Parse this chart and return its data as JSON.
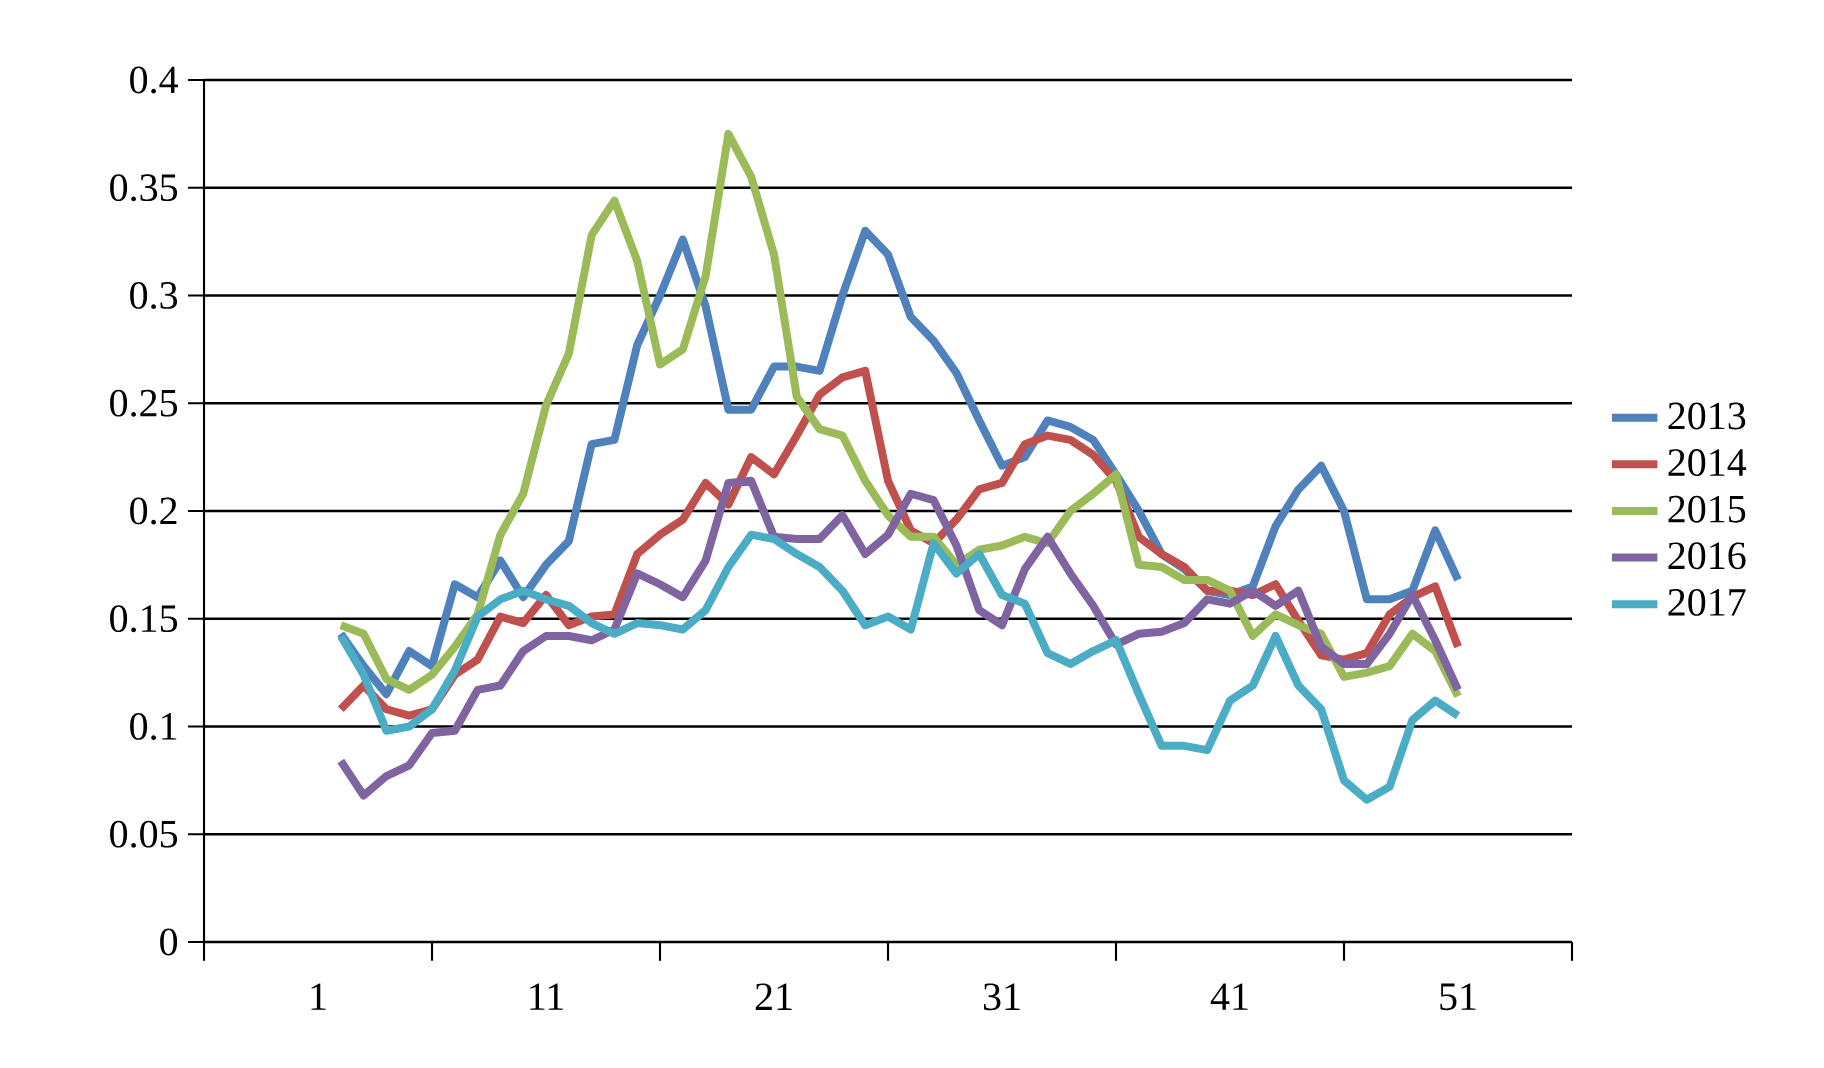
{
  "chart_data": {
    "type": "line",
    "x": [
      2,
      3,
      4,
      5,
      6,
      7,
      8,
      9,
      10,
      11,
      12,
      13,
      14,
      15,
      16,
      17,
      18,
      19,
      20,
      21,
      22,
      23,
      24,
      25,
      26,
      27,
      28,
      29,
      30,
      31,
      32,
      33,
      34,
      35,
      36,
      37,
      38,
      39,
      40,
      41,
      42,
      43,
      44,
      45,
      46,
      47,
      48,
      49,
      50,
      51
    ],
    "series": [
      {
        "name": "2013",
        "color": "#4f81bd",
        "values": [
          0.143,
          0.128,
          0.115,
          0.135,
          0.128,
          0.166,
          0.16,
          0.177,
          0.16,
          0.175,
          0.186,
          0.231,
          0.233,
          0.277,
          0.3,
          0.326,
          0.295,
          0.247,
          0.247,
          0.267,
          0.267,
          0.265,
          0.3,
          0.33,
          0.319,
          0.29,
          0.279,
          0.264,
          0.242,
          0.221,
          0.225,
          0.242,
          0.239,
          0.233,
          0.217,
          0.2,
          0.18,
          0.173,
          0.163,
          0.161,
          0.165,
          0.193,
          0.21,
          0.221,
          0.2,
          0.159,
          0.159,
          0.163,
          0.191,
          0.168
        ]
      },
      {
        "name": "2014",
        "color": "#c0504d",
        "values": [
          0.108,
          0.119,
          0.108,
          0.105,
          0.108,
          0.124,
          0.131,
          0.151,
          0.148,
          0.161,
          0.147,
          0.151,
          0.152,
          0.18,
          0.189,
          0.196,
          0.213,
          0.203,
          0.225,
          0.217,
          0.235,
          0.254,
          0.262,
          0.265,
          0.214,
          0.191,
          0.185,
          0.196,
          0.21,
          0.213,
          0.231,
          0.235,
          0.233,
          0.226,
          0.214,
          0.188,
          0.18,
          0.174,
          0.163,
          0.163,
          0.161,
          0.166,
          0.149,
          0.133,
          0.131,
          0.134,
          0.152,
          0.16,
          0.165,
          0.137
        ]
      },
      {
        "name": "2015",
        "color": "#9bbb59",
        "values": [
          0.147,
          0.143,
          0.122,
          0.117,
          0.124,
          0.137,
          0.152,
          0.189,
          0.208,
          0.249,
          0.273,
          0.328,
          0.344,
          0.316,
          0.268,
          0.275,
          0.309,
          0.375,
          0.355,
          0.319,
          0.253,
          0.238,
          0.235,
          0.214,
          0.198,
          0.188,
          0.188,
          0.175,
          0.182,
          0.184,
          0.188,
          0.185,
          0.2,
          0.208,
          0.217,
          0.175,
          0.174,
          0.168,
          0.168,
          0.163,
          0.142,
          0.152,
          0.147,
          0.143,
          0.123,
          0.125,
          0.128,
          0.143,
          0.135,
          0.114
        ]
      },
      {
        "name": "2016",
        "color": "#8064a2",
        "values": [
          0.084,
          0.068,
          0.077,
          0.082,
          0.097,
          0.098,
          0.117,
          0.119,
          0.135,
          0.142,
          0.142,
          0.14,
          0.145,
          0.171,
          0.166,
          0.16,
          0.177,
          0.213,
          0.214,
          0.188,
          0.187,
          0.187,
          0.198,
          0.18,
          0.189,
          0.208,
          0.205,
          0.184,
          0.154,
          0.147,
          0.173,
          0.188,
          0.171,
          0.156,
          0.138,
          0.143,
          0.144,
          0.148,
          0.159,
          0.157,
          0.163,
          0.156,
          0.163,
          0.137,
          0.129,
          0.129,
          0.143,
          0.161,
          0.14,
          0.117
        ]
      },
      {
        "name": "2017",
        "color": "#4bacc6",
        "values": [
          0.142,
          0.124,
          0.098,
          0.1,
          0.108,
          0.126,
          0.151,
          0.159,
          0.163,
          0.159,
          0.156,
          0.148,
          0.143,
          0.148,
          0.147,
          0.145,
          0.154,
          0.174,
          0.189,
          0.187,
          0.18,
          0.174,
          0.163,
          0.147,
          0.151,
          0.145,
          0.185,
          0.171,
          0.18,
          0.161,
          0.157,
          0.134,
          0.129,
          0.135,
          0.14,
          0.115,
          0.091,
          0.091,
          0.089,
          0.112,
          0.119,
          0.142,
          0.119,
          0.108,
          0.075,
          0.066,
          0.072,
          0.103,
          0.112,
          0.105
        ]
      }
    ],
    "xlim": [
      -4,
      56
    ],
    "xticks": [
      1,
      11,
      21,
      31,
      41,
      51,
      {
        "value": -4,
        "label": null
      },
      {
        "value": 6,
        "label": null
      },
      {
        "value": 16,
        "label": null
      },
      {
        "value": 26,
        "label": null
      },
      {
        "value": 36,
        "label": null
      },
      {
        "value": 46,
        "label": null
      },
      {
        "value": 56,
        "label": null
      }
    ],
    "ylim": [
      0,
      0.4
    ],
    "yticks": [
      0,
      0.05,
      0.1,
      0.15,
      0.2,
      0.25,
      0.3,
      0.35,
      0.4
    ],
    "grid": "y",
    "legend": "right",
    "marker": "none",
    "line_style": "solid"
  }
}
